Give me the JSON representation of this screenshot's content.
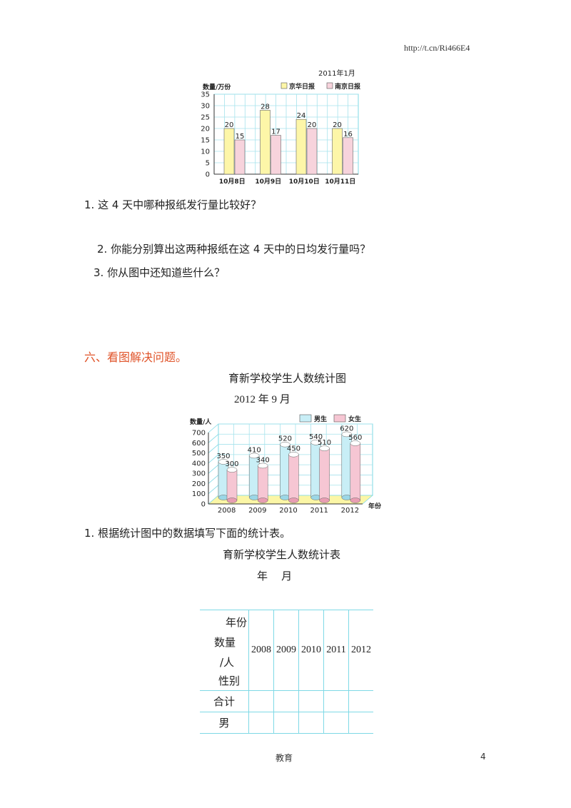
{
  "header": {
    "url": "http://t.cn/Ri466E4"
  },
  "chart1": {
    "date": "2011年1月",
    "ylabel": "数量/万份"
  },
  "chart_data": [
    {
      "type": "bar",
      "title": "",
      "subtitle": "2011年1月",
      "ylabel": "数量/万份",
      "xlabel": "",
      "ylim": [
        0,
        35
      ],
      "yticks": [
        0,
        5,
        10,
        15,
        20,
        25,
        30,
        35
      ],
      "categories": [
        "10月8日",
        "10月9日",
        "10月10日",
        "10月11日"
      ],
      "series": [
        {
          "name": "京华日报",
          "values": [
            20,
            28,
            24,
            20
          ],
          "color": "#fdf6a8"
        },
        {
          "name": "南京日报",
          "values": [
            15,
            17,
            20,
            16
          ],
          "color": "#f7d3dc"
        }
      ],
      "grid": true,
      "legend": "top-right"
    },
    {
      "type": "bar",
      "title": "育新学校学生人数统计图",
      "subtitle": "2012年9月",
      "ylabel": "数量/人",
      "xlabel": "年份",
      "ylim": [
        0,
        700
      ],
      "yticks": [
        0,
        100,
        200,
        300,
        400,
        500,
        600,
        700
      ],
      "categories": [
        "2008",
        "2009",
        "2010",
        "2011",
        "2012"
      ],
      "series": [
        {
          "name": "男生",
          "values": [
            350,
            410,
            520,
            540,
            620
          ],
          "color": "#c8eef6"
        },
        {
          "name": "女生",
          "values": [
            300,
            340,
            450,
            510,
            560
          ],
          "color": "#f6c6d3"
        }
      ],
      "grid": true,
      "legend": "top-right"
    }
  ],
  "questions1": {
    "q1": "1. 这 4 天中哪种报纸发行量比较好？",
    "q2": "2. 你能分别算出这两种报纸在这 4 天中的日均发行量吗？",
    "q3": "3. 你从图中还知道些什么？"
  },
  "section6": {
    "heading": "六、看图解决问题。",
    "chart_title": "育新学校学生人数统计图",
    "chart_date": "2012 年 9 月",
    "q1": "1. 根据统计图中的数据填写下面的统计表。",
    "table_title": "育新学校学生人数统计表",
    "table_date": "年    月"
  },
  "table": {
    "header_year": "年份",
    "header_qty_1": "数量",
    "header_qty_2": "/人",
    "header_gender": "性别",
    "years": [
      "2008",
      "2009",
      "2010",
      "2011",
      "2012"
    ],
    "rows": [
      "合计",
      "男"
    ]
  },
  "footer": {
    "text": "教育",
    "page": "4"
  }
}
